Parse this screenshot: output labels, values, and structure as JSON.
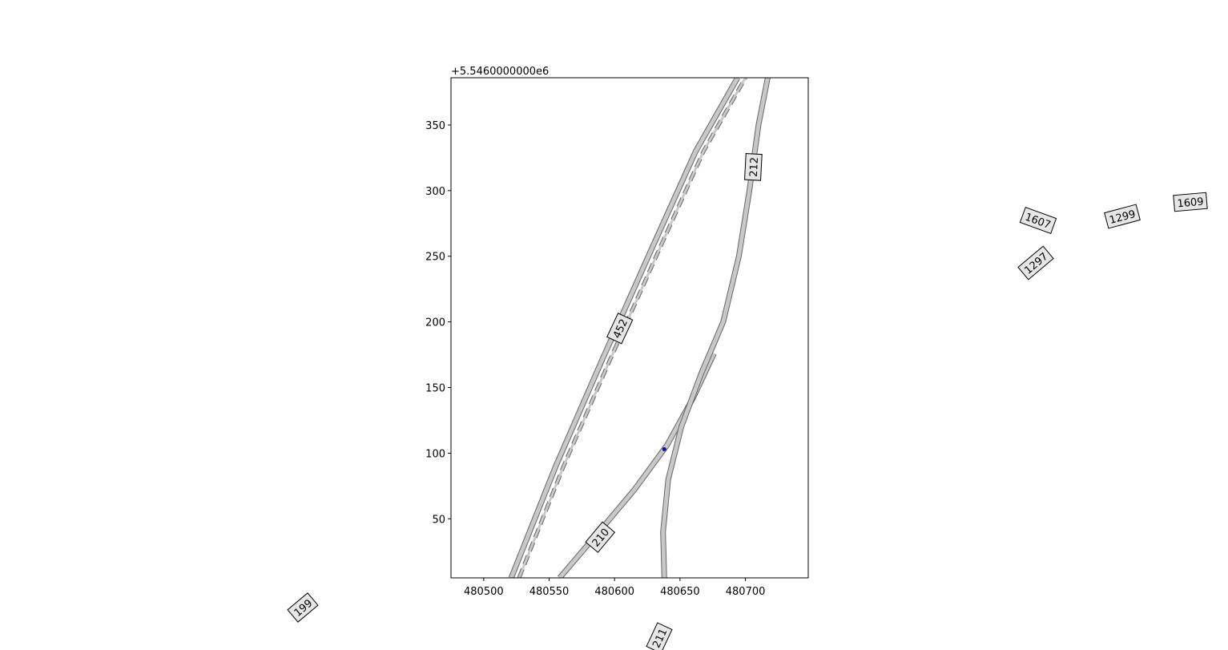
{
  "chart_data": {
    "type": "map",
    "x_ticks": [
      "480500",
      "480550",
      "480600",
      "480650",
      "480700"
    ],
    "y_ticks": [
      "50",
      "100",
      "150",
      "200",
      "250",
      "300",
      "350"
    ],
    "y_offset_text": "+5.5460000000e6",
    "xlim": [
      480475,
      480748
    ],
    "ylim": [
      5546005,
      5546386
    ],
    "roads": [
      {
        "id": "452",
        "points": [
          [
            480521,
            5546005
          ],
          [
            480555,
            5546090
          ],
          [
            480590,
            5546170
          ],
          [
            480628,
            5546255
          ],
          [
            480662,
            5546330
          ],
          [
            480694,
            5546386
          ]
        ]
      },
      {
        "id": "452-edge",
        "points": [
          [
            480527,
            5546005
          ],
          [
            480561,
            5546090
          ],
          [
            480596,
            5546170
          ],
          [
            480634,
            5546255
          ],
          [
            480668,
            5546330
          ],
          [
            480700,
            5546386
          ]
        ]
      },
      {
        "id": "210",
        "points": [
          [
            480558,
            5546005
          ],
          [
            480588,
            5546040
          ],
          [
            480615,
            5546072
          ],
          [
            480640,
            5546106
          ],
          [
            480660,
            5546142
          ],
          [
            480676,
            5546176
          ]
        ]
      },
      {
        "id": "211",
        "points": [
          [
            480638,
            5546005
          ],
          [
            480637,
            5546040
          ],
          [
            480641,
            5546080
          ],
          [
            480651,
            5546120
          ],
          [
            480666,
            5546160
          ],
          [
            480683,
            5546200
          ],
          [
            480695,
            5546250
          ],
          [
            480703,
            5546300
          ],
          [
            480710,
            5546350
          ],
          [
            480717,
            5546386
          ]
        ]
      }
    ],
    "point": {
      "x": 480638,
      "y": 5546103
    },
    "labels_in_axes": [
      {
        "text": "452",
        "x": 480604,
        "y": 5546195,
        "rotation": -65
      },
      {
        "text": "210",
        "x": 480589,
        "y": 5546036,
        "rotation": -50
      },
      {
        "text": "212",
        "x": 480706,
        "y": 5546318,
        "rotation": -87
      }
    ],
    "labels_outside": [
      {
        "text": "1607",
        "rotation": 20
      },
      {
        "text": "1299",
        "rotation": -15
      },
      {
        "text": "1609",
        "rotation": -5
      },
      {
        "text": "1297",
        "rotation": -40
      },
      {
        "text": "199",
        "rotation": -40
      },
      {
        "text": "211",
        "rotation": -65
      }
    ],
    "colors": {
      "road_fill": "#c8c8c8",
      "road_edge": "#666666",
      "point": "#0a0a8c",
      "label_bg": "#e6e6e6"
    }
  }
}
